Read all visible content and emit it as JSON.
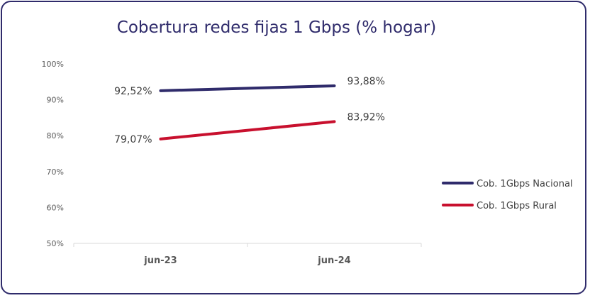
{
  "chart_data": {
    "type": "line",
    "title": "Cobertura redes fijas 1 Gbps (% hogar)",
    "categories": [
      "jun-23",
      "jun-24"
    ],
    "y_ticks": [
      "50%",
      "60%",
      "70%",
      "80%",
      "90%",
      "100%"
    ],
    "ylim": [
      50,
      100
    ],
    "grid": false,
    "legend_position": "right",
    "series": [
      {
        "name": "Cob. 1Gbps Nacional",
        "color": "#2f2b6b",
        "values": [
          92.52,
          93.88
        ],
        "labels": [
          "92,52%",
          "93,88%"
        ]
      },
      {
        "name": "Cob. 1Gbps Rural",
        "color": "#c8102e",
        "values": [
          79.07,
          83.92
        ],
        "labels": [
          "79,07%",
          "83,92%"
        ]
      }
    ]
  }
}
